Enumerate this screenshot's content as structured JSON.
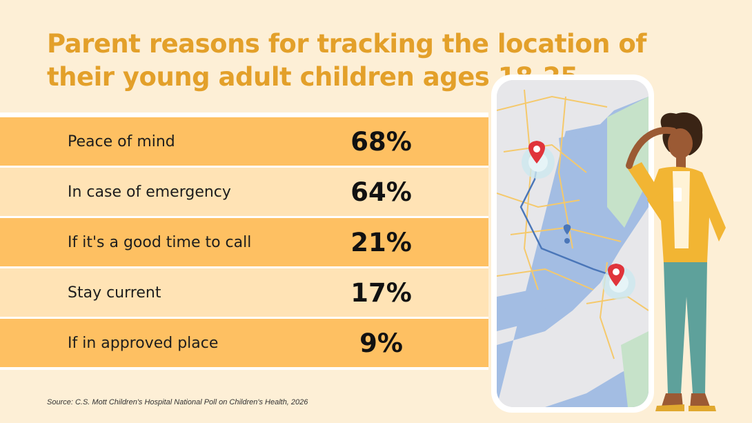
{
  "title": "Parent reasons for tracking the location of their young adult children ages 18-25",
  "source": "Source: C.S. Mott Children's Hospital National Poll on Children's Health, 2026",
  "colors": {
    "title": "#e3a02a",
    "row_dark": "#fec062",
    "row_light": "#ffe3b5",
    "background": "#fdefd6"
  },
  "chart_data": {
    "type": "table",
    "title": "Parent reasons for tracking the location of their young adult children ages 18-25",
    "categories": [
      "Peace of mind",
      "In case of emergency",
      "If it's a good time to call",
      "Stay current",
      "If in approved place"
    ],
    "values": [
      68,
      64,
      21,
      17,
      9
    ],
    "value_labels": [
      "68%",
      "64%",
      "21%",
      "17%",
      "9%"
    ],
    "unit": "%"
  }
}
